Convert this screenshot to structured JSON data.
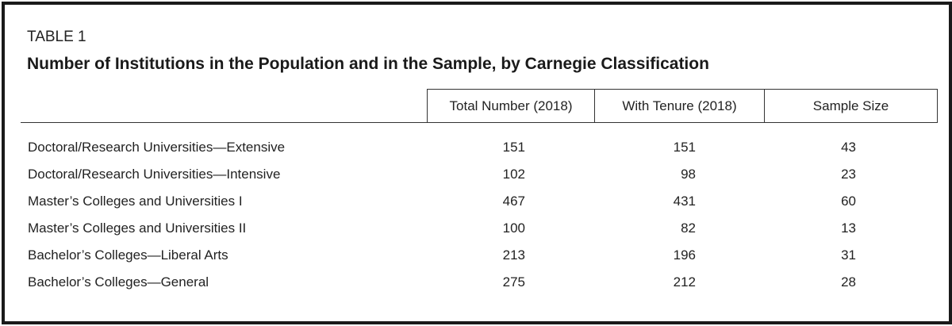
{
  "table": {
    "label": "TABLE 1",
    "title": "Number of Institutions in the Population and in the Sample, by Carnegie Classification",
    "columns": [
      "Total Number (2018)",
      "With Tenure (2018)",
      "Sample Size"
    ],
    "rows": [
      {
        "name": "Doctoral/Research Universities—Extensive",
        "total": "151",
        "tenure": "151",
        "sample": "43"
      },
      {
        "name": "Doctoral/Research Universities—Intensive",
        "total": "102",
        "tenure": "98",
        "sample": "23"
      },
      {
        "name": "Master’s Colleges and Universities I",
        "total": "467",
        "tenure": "431",
        "sample": "60"
      },
      {
        "name": "Master’s Colleges and Universities II",
        "total": "100",
        "tenure": "82",
        "sample": "13"
      },
      {
        "name": "Bachelor’s Colleges—Liberal Arts",
        "total": "213",
        "tenure": "196",
        "sample": "31"
      },
      {
        "name": "Bachelor’s Colleges—General",
        "total": "275",
        "tenure": "212",
        "sample": "28"
      }
    ]
  }
}
